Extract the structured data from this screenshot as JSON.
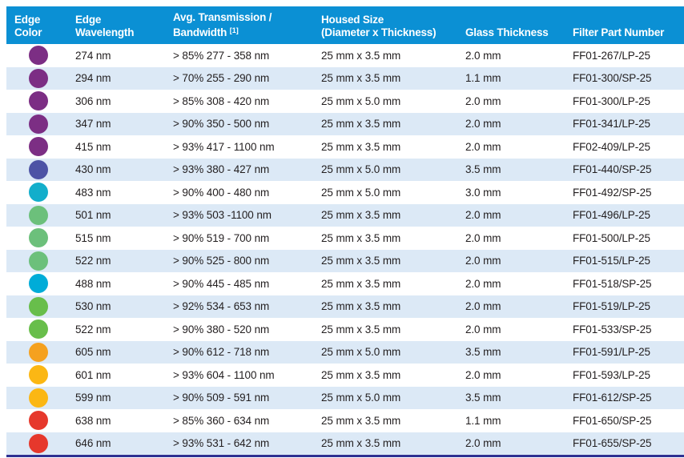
{
  "colors": {
    "header_bg": "#0B90D4",
    "row_alt_bg": "#DCE9F6",
    "bottom_border": "#2E3192",
    "header_text": "#FFFFFF",
    "body_text": "#221E1F"
  },
  "table": {
    "columns": [
      {
        "label_lines": [
          "Edge",
          "Color"
        ]
      },
      {
        "label_lines": [
          "Edge",
          "Wavelength"
        ]
      },
      {
        "label_lines": [
          "Avg. Transmission /",
          "Bandwidth"
        ],
        "footnote": "[1]"
      },
      {
        "label_lines": [
          "Housed Size",
          "(Diameter x Thickness)"
        ]
      },
      {
        "label_lines": [
          "Glass Thickness"
        ]
      },
      {
        "label_lines": [
          "Filter Part Number"
        ]
      }
    ],
    "rows": [
      {
        "edge_color": "#7C2E84",
        "edge_color_name": "purple",
        "wavelength": "274 nm",
        "transmission": "> 85% 277 - 358 nm",
        "housed_size": "25 mm x 3.5 mm",
        "glass_thickness": "2.0 mm",
        "part_number": "FF01-267/LP-25"
      },
      {
        "edge_color": "#7C2E84",
        "edge_color_name": "purple",
        "wavelength": "294 nm",
        "transmission": "> 70% 255 - 290 nm",
        "housed_size": "25 mm x 3.5 mm",
        "glass_thickness": "1.1 mm",
        "part_number": "FF01-300/SP-25"
      },
      {
        "edge_color": "#7C2E84",
        "edge_color_name": "purple",
        "wavelength": "306 nm",
        "transmission": "> 85% 308 - 420 nm",
        "housed_size": "25 mm x 5.0 mm",
        "glass_thickness": "2.0 mm",
        "part_number": "FF01-300/LP-25"
      },
      {
        "edge_color": "#7C2E84",
        "edge_color_name": "purple",
        "wavelength": "347 nm",
        "transmission": "> 90% 350 - 500 nm",
        "housed_size": "25 mm x 3.5 mm",
        "glass_thickness": "2.0 mm",
        "part_number": "FF01-341/LP-25"
      },
      {
        "edge_color": "#7C2E84",
        "edge_color_name": "purple",
        "wavelength": "415 nm",
        "transmission": "> 93% 417 - 1100 nm",
        "housed_size": "25 mm x 3.5 mm",
        "glass_thickness": "2.0 mm",
        "part_number": "FF02-409/LP-25"
      },
      {
        "edge_color": "#4D53A5",
        "edge_color_name": "indigo",
        "wavelength": "430 nm",
        "transmission": "> 93% 380 - 427 nm",
        "housed_size": "25 mm x 5.0 mm",
        "glass_thickness": "3.5 mm",
        "part_number": "FF01-440/SP-25"
      },
      {
        "edge_color": "#12AECB",
        "edge_color_name": "cyan",
        "wavelength": "483 nm",
        "transmission": "> 90% 400 - 480 nm",
        "housed_size": "25 mm x 5.0 mm",
        "glass_thickness": "3.0 mm",
        "part_number": "FF01-492/SP-25"
      },
      {
        "edge_color": "#6CC07B",
        "edge_color_name": "soft-green",
        "wavelength": "501 nm",
        "transmission": "> 93% 503 -1100 nm",
        "housed_size": "25 mm x 3.5 mm",
        "glass_thickness": "2.0 mm",
        "part_number": "FF01-496/LP-25"
      },
      {
        "edge_color": "#6CC07B",
        "edge_color_name": "soft-green",
        "wavelength": "515 nm",
        "transmission": "> 90% 519 - 700 nm",
        "housed_size": "25 mm x 3.5 mm",
        "glass_thickness": "2.0 mm",
        "part_number": "FF01-500/LP-25"
      },
      {
        "edge_color": "#6CC07B",
        "edge_color_name": "soft-green",
        "wavelength": "522 nm",
        "transmission": "> 90% 525 - 800 nm",
        "housed_size": "25 mm x 3.5 mm",
        "glass_thickness": "2.0 mm",
        "part_number": "FF01-515/LP-25"
      },
      {
        "edge_color": "#00ACD8",
        "edge_color_name": "cyan",
        "wavelength": "488 nm",
        "transmission": "> 90% 445 - 485 nm",
        "housed_size": "25 mm x 3.5 mm",
        "glass_thickness": "2.0 mm",
        "part_number": "FF01-518/SP-25"
      },
      {
        "edge_color": "#68BE4B",
        "edge_color_name": "green",
        "wavelength": "530 nm",
        "transmission": "> 92% 534 - 653 nm",
        "housed_size": "25 mm x 3.5 mm",
        "glass_thickness": "2.0 mm",
        "part_number": "FF01-519/LP-25"
      },
      {
        "edge_color": "#68BE4B",
        "edge_color_name": "green",
        "wavelength": "522 nm",
        "transmission": "> 90% 380 - 520 nm",
        "housed_size": "25 mm x 3.5 mm",
        "glass_thickness": "2.0 mm",
        "part_number": "FF01-533/SP-25"
      },
      {
        "edge_color": "#F5A11F",
        "edge_color_name": "orange",
        "wavelength": "605 nm",
        "transmission": "> 90% 612 - 718 nm",
        "housed_size": "25 mm x 5.0 mm",
        "glass_thickness": "3.5 mm",
        "part_number": "FF01-591/LP-25"
      },
      {
        "edge_color": "#FBB714",
        "edge_color_name": "gold",
        "wavelength": "601 nm",
        "transmission": "> 93% 604 - 1100 nm",
        "housed_size": "25 mm x 3.5 mm",
        "glass_thickness": "2.0 mm",
        "part_number": "FF01-593/LP-25"
      },
      {
        "edge_color": "#FBB714",
        "edge_color_name": "gold",
        "wavelength": "599 nm",
        "transmission": "> 90% 509 - 591 nm",
        "housed_size": "25 mm x 5.0 mm",
        "glass_thickness": "3.5 mm",
        "part_number": "FF01-612/SP-25"
      },
      {
        "edge_color": "#E6382C",
        "edge_color_name": "red",
        "wavelength": "638 nm",
        "transmission": "> 85% 360 - 634 nm",
        "housed_size": "25 mm x 3.5 mm",
        "glass_thickness": "1.1 mm",
        "part_number": "FF01-650/SP-25"
      },
      {
        "edge_color": "#E6382C",
        "edge_color_name": "red",
        "wavelength": "646 nm",
        "transmission": "> 93% 531 - 642 nm",
        "housed_size": "25 mm x 3.5 mm",
        "glass_thickness": "2.0 mm",
        "part_number": "FF01-655/SP-25"
      }
    ]
  }
}
